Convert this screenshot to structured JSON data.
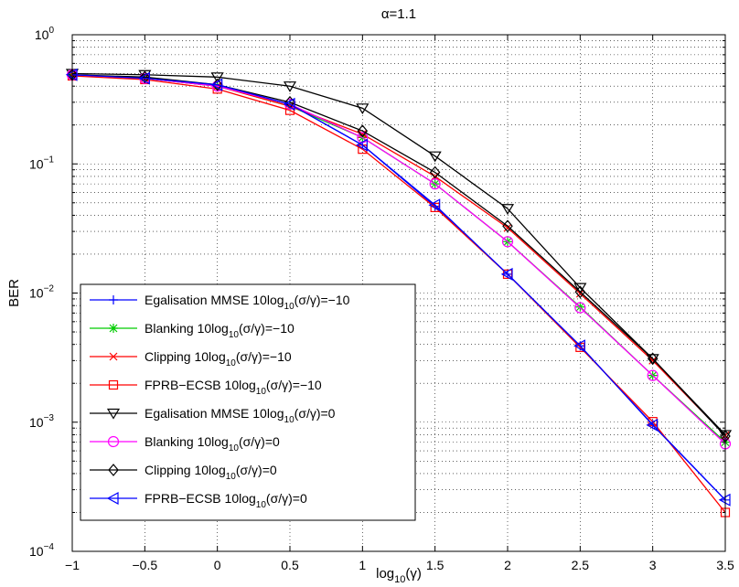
{
  "chart_data": {
    "type": "line",
    "title": "α=1.1",
    "xlabel": "log10(γ)",
    "ylabel": "BER",
    "xlim": [
      -1,
      3.5
    ],
    "ylim": [
      0.0001,
      1
    ],
    "yscale": "log",
    "grid": true,
    "legend_position": "bottom-left",
    "x_ticks": [
      "−1",
      "−0.5",
      "0",
      "0.5",
      "1",
      "1.5",
      "2",
      "2.5",
      "3",
      "3.5"
    ],
    "y_ticks": [
      {
        "value": 1,
        "base": "10",
        "exp": "0"
      },
      {
        "value": 0.1,
        "base": "10",
        "exp": "−1"
      },
      {
        "value": 0.01,
        "base": "10",
        "exp": "−2"
      },
      {
        "value": 0.001,
        "base": "10",
        "exp": "−3"
      },
      {
        "value": 0.0001,
        "base": "10",
        "exp": "−4"
      }
    ],
    "x": [
      -1,
      -0.5,
      0,
      0.5,
      1,
      1.5,
      2,
      2.5,
      3,
      3.5
    ],
    "series": [
      {
        "name": "Egalisation MMSE 10log10(σ/γ)=−10",
        "color": "#0000ff",
        "marker": "plus",
        "values": [
          0.49,
          0.46,
          0.4,
          0.29,
          0.14,
          0.047,
          0.014,
          0.0039,
          0.00096,
          0.00025
        ]
      },
      {
        "name": "Blanking 10log10(σ/γ)=−10",
        "color": "#00cc00",
        "marker": "star",
        "values": [
          0.49,
          0.46,
          0.4,
          0.28,
          0.16,
          0.07,
          0.025,
          0.0078,
          0.0023,
          0.0007
        ]
      },
      {
        "name": "Clipping 10log10(σ/γ)=−10",
        "color": "#ff0000",
        "marker": "x",
        "values": [
          0.49,
          0.46,
          0.4,
          0.28,
          0.17,
          0.08,
          0.032,
          0.0099,
          0.003,
          0.00079
        ]
      },
      {
        "name": "FPRB−ECSB 10log10(σ/γ)=−10",
        "color": "#ff0000",
        "marker": "square",
        "values": [
          0.48,
          0.45,
          0.38,
          0.26,
          0.13,
          0.046,
          0.014,
          0.0038,
          0.00101,
          0.0002
        ]
      },
      {
        "name": "Egalisation MMSE 10log10(σ/γ)=0",
        "color": "#000000",
        "marker": "triangle-down",
        "values": [
          0.5,
          0.49,
          0.47,
          0.4,
          0.27,
          0.115,
          0.045,
          0.011,
          0.0031,
          0.0008
        ]
      },
      {
        "name": "Blanking 10log10(σ/γ)=0",
        "color": "#ff00ff",
        "marker": "circle",
        "values": [
          0.49,
          0.46,
          0.4,
          0.29,
          0.16,
          0.07,
          0.025,
          0.0077,
          0.0023,
          0.00068
        ]
      },
      {
        "name": "Clipping 10log10(σ/γ)=0",
        "color": "#000000",
        "marker": "diamond",
        "values": [
          0.49,
          0.47,
          0.41,
          0.3,
          0.18,
          0.086,
          0.033,
          0.0102,
          0.0031,
          0.00078
        ]
      },
      {
        "name": "FPRB−ECSB 10log10(σ/γ)=0",
        "color": "#0000ff",
        "marker": "triangle-left",
        "values": [
          0.49,
          0.46,
          0.41,
          0.29,
          0.14,
          0.048,
          0.014,
          0.0039,
          0.00095,
          0.00025
        ]
      }
    ],
    "legend_labels": [
      {
        "prefix": "Egalisation MMSE 10log",
        "sub": "10",
        "suffix": "(σ/γ)=−10"
      },
      {
        "prefix": "Blanking 10log",
        "sub": "10",
        "suffix": "(σ/γ)=−10"
      },
      {
        "prefix": "Clipping 10log",
        "sub": "10",
        "suffix": "(σ/γ)=−10"
      },
      {
        "prefix": "FPRB−ECSB 10log",
        "sub": "10",
        "suffix": "(σ/γ)=−10"
      },
      {
        "prefix": "Egalisation MMSE 10log",
        "sub": "10",
        "suffix": "(σ/γ)=0"
      },
      {
        "prefix": "Blanking 10log",
        "sub": "10",
        "suffix": "(σ/γ)=0"
      },
      {
        "prefix": "Clipping 10log",
        "sub": "10",
        "suffix": "(σ/γ)=0"
      },
      {
        "prefix": "FPRB−ECSB 10log",
        "sub": "10",
        "suffix": "(σ/γ)=0"
      }
    ],
    "xlabel_parts": {
      "prefix": "log",
      "sub": "10",
      "suffix": "(γ)"
    }
  }
}
